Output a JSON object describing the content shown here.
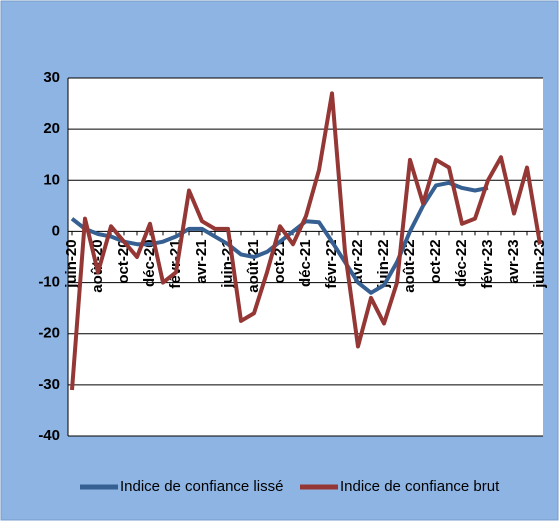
{
  "chart_data": {
    "type": "line",
    "categories": [
      "juin-20",
      null,
      "août-20",
      null,
      "oct-20",
      null,
      "déc-20",
      null,
      "févr-21",
      null,
      "avr-21",
      null,
      "juin-21",
      null,
      "août-21",
      null,
      "oct-21",
      null,
      "déc-21",
      null,
      "févr-22",
      null,
      "avr-22",
      null,
      "juin-22",
      null,
      "août-22",
      null,
      "oct-22",
      null,
      "déc-22",
      null,
      "févr-23",
      null,
      "avr-23",
      null,
      "juin-23"
    ],
    "series": [
      {
        "name": "Indice de confiance lissé",
        "color": "#376092",
        "values": [
          2.5,
          0.5,
          -0.5,
          -1,
          -2,
          -2.5,
          -2.5,
          -2,
          -1,
          0.5,
          0.5,
          -1,
          -2.5,
          -4.5,
          -5,
          -4,
          -2,
          0,
          2,
          1.8,
          -2,
          -6,
          -10,
          -12,
          -10.5,
          -6,
          0,
          5,
          9,
          9.5,
          8.5,
          8,
          8.5,
          null,
          null,
          null,
          null
        ]
      },
      {
        "name": "Indice de confiance brut",
        "color": "#953735",
        "values": [
          -31,
          2.5,
          -8,
          1,
          -2,
          -5,
          1.5,
          -10,
          -8,
          8,
          2,
          0.5,
          0.5,
          -17.5,
          -16,
          -8,
          1,
          -2.5,
          3,
          12,
          27,
          -4,
          -22.5,
          -13,
          -18,
          -10,
          14,
          5.5,
          14,
          12.5,
          1.5,
          2.5,
          10,
          14.5,
          3.5,
          12.5,
          -2.5
        ]
      }
    ],
    "ylim": [
      -40,
      30
    ],
    "yticks": [
      -40,
      -30,
      -20,
      -10,
      0,
      10,
      20,
      30
    ],
    "grid": true,
    "legend": "bottom"
  }
}
